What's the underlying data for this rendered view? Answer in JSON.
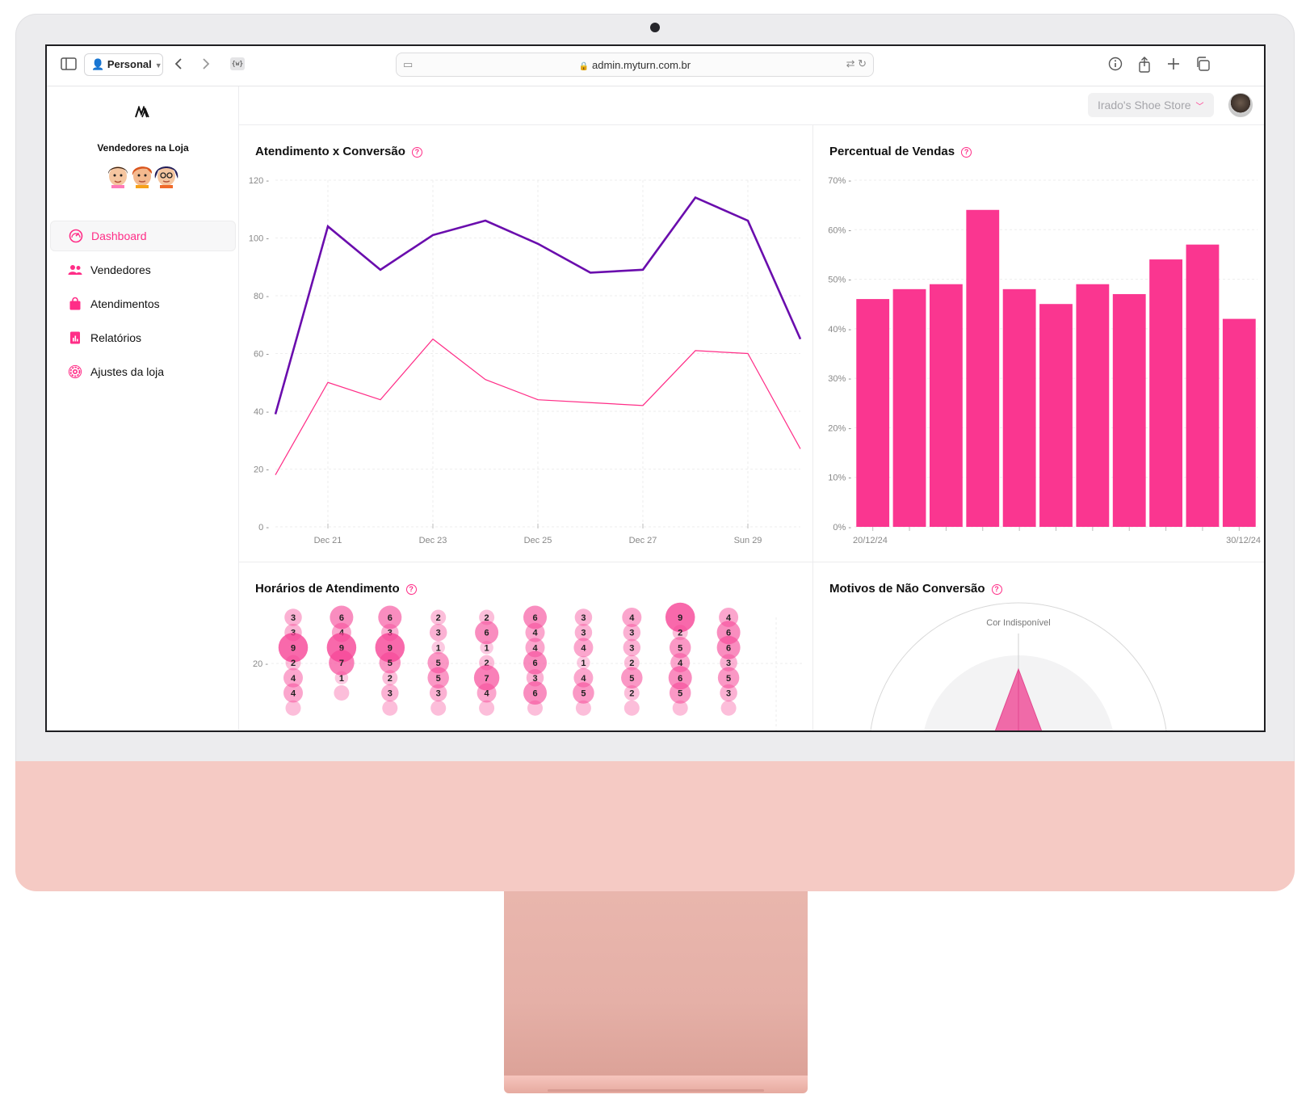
{
  "browser": {
    "profile_label": "Personal",
    "url": "admin.myturn.com.br",
    "extension_label": "{w}"
  },
  "sidebar": {
    "logo": "M",
    "team_title": "Vendedores na Loja",
    "items": [
      {
        "label": "Dashboard",
        "icon": "dashboard-icon",
        "active": true
      },
      {
        "label": "Vendedores",
        "icon": "users-icon",
        "active": false
      },
      {
        "label": "Atendimentos",
        "icon": "shopping-bag-icon",
        "active": false
      },
      {
        "label": "Relatórios",
        "icon": "report-icon",
        "active": false
      },
      {
        "label": "Ajustes da loja",
        "icon": "gear-icon",
        "active": false
      }
    ]
  },
  "header": {
    "store_name": "Irado's Shoe Store"
  },
  "colors": {
    "accent": "#ff2d87",
    "primary_line": "#6a0dad",
    "bar": "#fa3690"
  },
  "cards": {
    "attendance": {
      "title": "Atendimento x Conversão"
    },
    "sales_pct": {
      "title": "Percentual de Vendas"
    },
    "hours": {
      "title": "Horários de Atendimento"
    },
    "reasons": {
      "title": "Motivos de Não Conversão"
    }
  },
  "chart_data": [
    {
      "type": "line",
      "title": "Atendimento x Conversão",
      "x_tick_labels": [
        "Dec 21",
        "Dec 23",
        "Dec 25",
        "Dec 27",
        "Sun 29"
      ],
      "x": [
        "2024-12-20",
        "2024-12-21",
        "2024-12-22",
        "2024-12-23",
        "2024-12-24",
        "2024-12-25",
        "2024-12-26",
        "2024-12-27",
        "2024-12-28",
        "2024-12-29",
        "2024-12-30"
      ],
      "ylim": [
        0,
        120
      ],
      "y_ticks": [
        0,
        20,
        40,
        60,
        80,
        100,
        120
      ],
      "series": [
        {
          "values": [
            39,
            104,
            89,
            101,
            106,
            98,
            88,
            89,
            114,
            106,
            65
          ]
        },
        {
          "values": [
            18,
            50,
            44,
            65,
            51,
            44,
            43,
            42,
            61,
            60,
            27
          ]
        }
      ]
    },
    {
      "type": "bar",
      "title": "Percentual de Vendas",
      "categories": [
        "20/12/24",
        "21/12/24",
        "22/12/24",
        "23/12/24",
        "24/12/24",
        "25/12/24",
        "26/12/24",
        "27/12/24",
        "28/12/24",
        "29/12/24",
        "30/12/24"
      ],
      "visible_tick_labels": [
        "20/12/24",
        "30/12/24"
      ],
      "values": [
        46,
        48,
        49,
        64,
        48,
        45,
        49,
        47,
        54,
        57,
        42
      ],
      "ylim": [
        0,
        70
      ],
      "y_ticks": [
        "0%",
        "10%",
        "20%",
        "30%",
        "40%",
        "50%",
        "60%",
        "70%"
      ]
    },
    {
      "type": "scatter",
      "title": "Horários de Atendimento",
      "y_ticks": [
        "20"
      ],
      "columns": [
        [
          3,
          3,
          9,
          2,
          4,
          4
        ],
        [
          6,
          4,
          9,
          7,
          1
        ],
        [
          6,
          3,
          9,
          5,
          2,
          3
        ],
        [
          2,
          3,
          1,
          5,
          5,
          3
        ],
        [
          2,
          6,
          1,
          2,
          7,
          4
        ],
        [
          6,
          4,
          4,
          6,
          3,
          6
        ],
        [
          3,
          3,
          4,
          1,
          4,
          5
        ],
        [
          4,
          3,
          3,
          2,
          5,
          2
        ],
        [
          9,
          2,
          5,
          4,
          6,
          5
        ],
        [
          4,
          6,
          6,
          3,
          5,
          3
        ]
      ]
    },
    {
      "type": "radar",
      "title": "Motivos de Não Conversão",
      "axis_labels": [
        "Cor Indisponível"
      ]
    }
  ]
}
